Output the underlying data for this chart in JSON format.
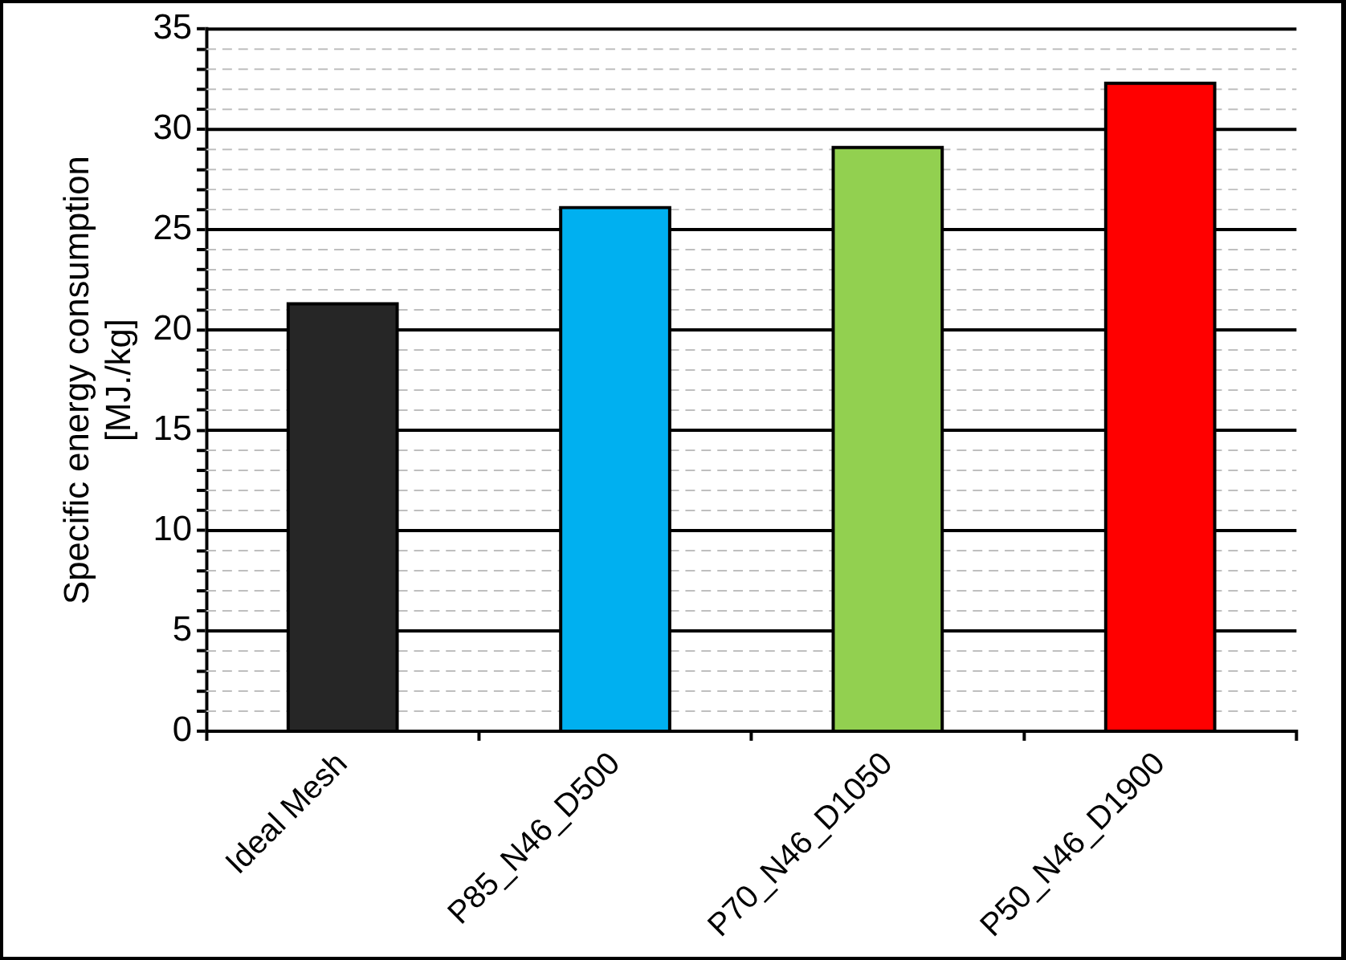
{
  "chart_data": {
    "type": "bar",
    "ylabel": "Specific energy consumption\n[MJ./kg]",
    "categories": [
      "Ideal Mesh",
      "P85_N46_D500",
      "P70_N46_D1050",
      "P50_N46_D1900"
    ],
    "values": [
      21.3,
      26.1,
      29.1,
      32.3
    ],
    "colors": [
      "#262626",
      "#00b0f0",
      "#92d050",
      "#ff0000"
    ],
    "ylim": [
      0,
      35
    ],
    "yticks": [
      0,
      {
        "value": 1,
        "label": null
      },
      {
        "value": 2,
        "label": null
      },
      {
        "value": 3,
        "label": null
      },
      {
        "value": 4,
        "label": null
      },
      5,
      {
        "value": 6,
        "label": null
      },
      {
        "value": 7,
        "label": null
      },
      {
        "value": 8,
        "label": null
      },
      {
        "value": 9,
        "label": null
      },
      10,
      {
        "value": 11,
        "label": null
      },
      {
        "value": 12,
        "label": null
      },
      {
        "value": 13,
        "label": null
      },
      {
        "value": 14,
        "label": null
      },
      15,
      {
        "value": 16,
        "label": null
      },
      {
        "value": 17,
        "label": null
      },
      {
        "value": 18,
        "label": null
      },
      {
        "value": 19,
        "label": null
      },
      20,
      {
        "value": 21,
        "label": null
      },
      {
        "value": 22,
        "label": null
      },
      {
        "value": 23,
        "label": null
      },
      {
        "value": 24,
        "label": null
      },
      25,
      {
        "value": 26,
        "label": null
      },
      {
        "value": 27,
        "label": null
      },
      {
        "value": 28,
        "label": null
      },
      {
        "value": 29,
        "label": null
      },
      30,
      {
        "value": 31,
        "label": null
      },
      {
        "value": 32,
        "label": null
      },
      {
        "value": 33,
        "label": null
      },
      {
        "value": 34,
        "label": null
      },
      35
    ],
    "grid": "y"
  }
}
